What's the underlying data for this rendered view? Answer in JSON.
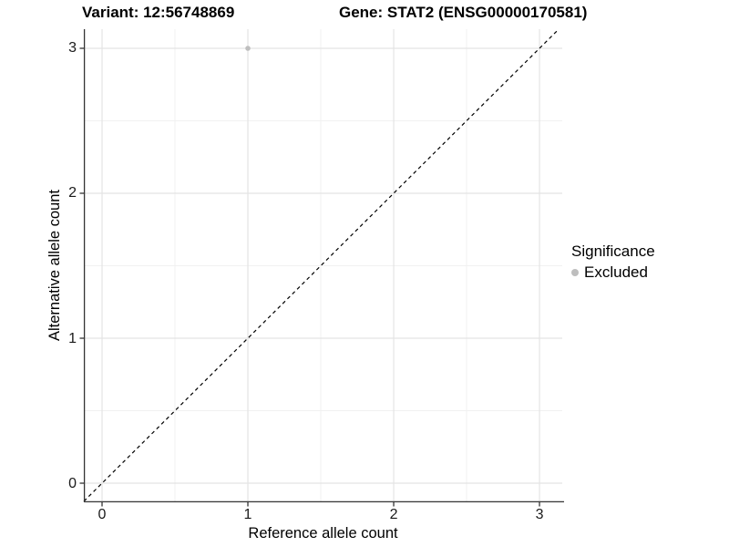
{
  "title": {
    "variant": "Variant: 12:56748869",
    "gene": "Gene: STAT2 (ENSG00000170581)"
  },
  "axes": {
    "x_label": "Reference allele count",
    "y_label": "Alternative allele count"
  },
  "legend": {
    "title": "Significance",
    "items": [
      {
        "label": "Excluded",
        "color": "#bebebe"
      }
    ]
  },
  "colors": {
    "point": "#bebebe",
    "grid_major": "#e4e4e4",
    "grid_minor": "#f1f1f1",
    "axis_line": "#333333",
    "reference_line": "#000000",
    "background": "#ffffff"
  },
  "chart_data": {
    "type": "scatter",
    "title": "Variant: 12:56748869 | Gene: STAT2 (ENSG00000170581)",
    "xlabel": "Reference allele count",
    "ylabel": "Alternative allele count",
    "xlim": [
      -0.125,
      3.156
    ],
    "ylim": [
      -0.132,
      3.132
    ],
    "x_ticks": [
      0,
      1,
      2,
      3
    ],
    "y_ticks": [
      0,
      1,
      2,
      3
    ],
    "x_minor_ticks": [
      0.5,
      1.5,
      2.5
    ],
    "y_minor_ticks": [
      0.5,
      1.5,
      2.5
    ],
    "grid": true,
    "legend_position": "right",
    "series": [
      {
        "name": "Excluded",
        "color": "#bebebe",
        "points": [
          {
            "x": 1,
            "y": 3
          }
        ]
      }
    ],
    "reference_line": {
      "kind": "identity",
      "equation": "y = x",
      "style": "dashed",
      "color": "#000000"
    }
  }
}
